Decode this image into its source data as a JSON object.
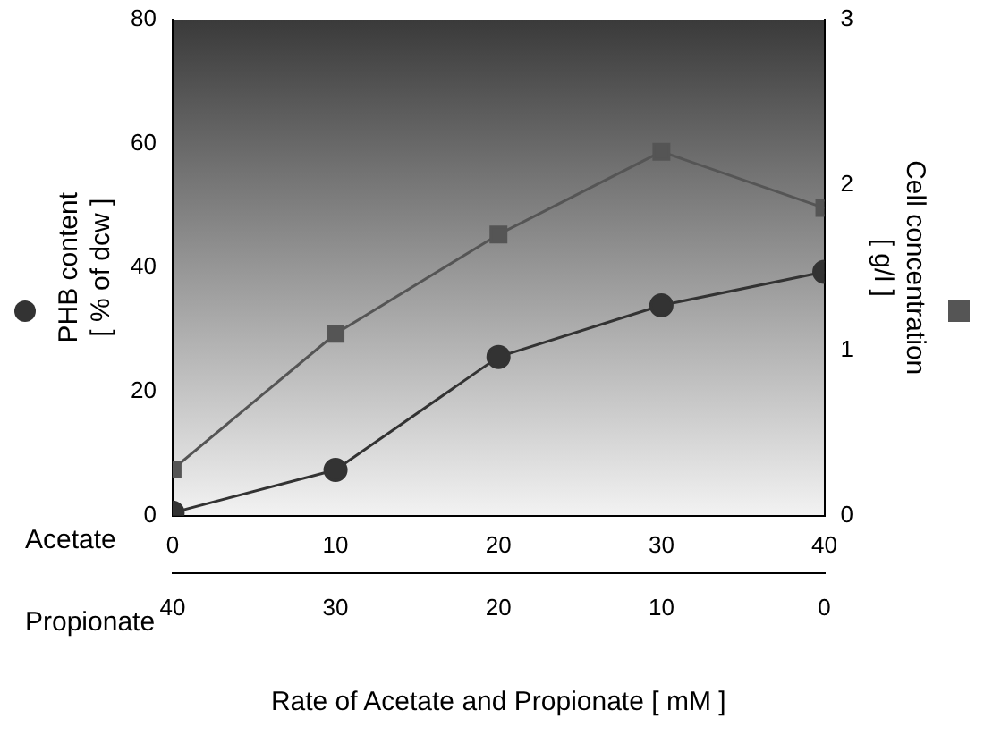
{
  "chart_data": {
    "type": "line",
    "x": [
      0,
      10,
      20,
      30,
      40
    ],
    "xlim": [
      0,
      40
    ],
    "xticks": [
      0,
      10,
      20,
      30,
      40
    ],
    "x2lim": [
      40,
      0
    ],
    "x2ticks": [
      40,
      30,
      20,
      10,
      0
    ],
    "x2label": "Propionate",
    "xlabel": "Rate of Acetate and Propionate [ mM ]",
    "ylabel": "PHB content\n[ % of dcw ]",
    "y2label": "Cell concentration\n[ g/l ]",
    "ylim": [
      0,
      80
    ],
    "yticks": [
      0,
      20,
      40,
      60,
      80
    ],
    "y2lim": [
      0,
      3
    ],
    "y2ticks": [
      0,
      1,
      2,
      3
    ],
    "annotations": [
      "Acetate"
    ],
    "grid": false,
    "legend": false,
    "line_style": "solid",
    "series": [
      {
        "color": "#333333",
        "marker": "circle",
        "values": [
          0.5,
          7.4,
          25.6,
          33.9,
          39.3
        ]
      },
      {
        "color": "#555555",
        "marker": "square",
        "axis": "y2",
        "values": [
          0.28,
          1.1,
          1.7,
          2.2,
          1.86
        ]
      }
    ]
  }
}
